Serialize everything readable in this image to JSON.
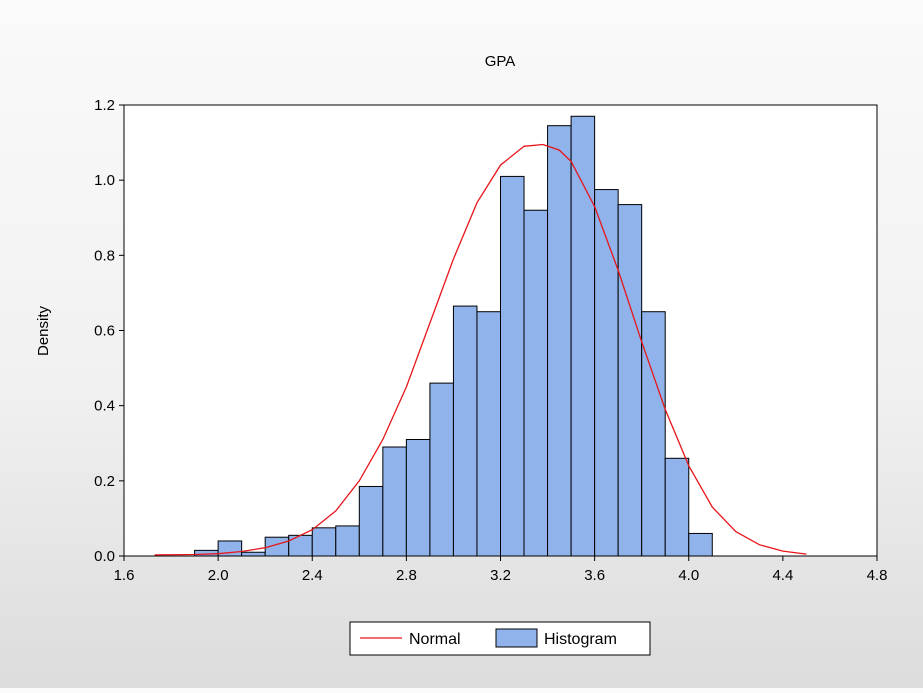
{
  "chart_data": {
    "type": "bar",
    "title": "GPA",
    "xlabel": "",
    "ylabel": "Density",
    "xlim": [
      1.6,
      4.8
    ],
    "ylim": [
      0.0,
      1.2
    ],
    "xticks": [
      "1.6",
      "2.0",
      "2.4",
      "2.8",
      "3.2",
      "3.6",
      "4.0",
      "4.4",
      "4.8"
    ],
    "yticks": [
      "0.0",
      "0.2",
      "0.4",
      "0.6",
      "0.8",
      "1.0",
      "1.2"
    ],
    "grid": false,
    "legend_position": "bottom-center",
    "series": [
      {
        "name": "Histogram",
        "kind": "bars",
        "color": "#8fb3ea",
        "bin_width": 0.1,
        "bins": [
          {
            "x0": 1.9,
            "value": 0.015
          },
          {
            "x0": 2.0,
            "value": 0.04
          },
          {
            "x0": 2.1,
            "value": 0.01
          },
          {
            "x0": 2.2,
            "value": 0.05
          },
          {
            "x0": 2.3,
            "value": 0.055
          },
          {
            "x0": 2.4,
            "value": 0.075
          },
          {
            "x0": 2.5,
            "value": 0.08
          },
          {
            "x0": 2.6,
            "value": 0.185
          },
          {
            "x0": 2.7,
            "value": 0.29
          },
          {
            "x0": 2.8,
            "value": 0.31
          },
          {
            "x0": 2.9,
            "value": 0.46
          },
          {
            "x0": 3.0,
            "value": 0.665
          },
          {
            "x0": 3.1,
            "value": 0.65
          },
          {
            "x0": 3.2,
            "value": 1.01
          },
          {
            "x0": 3.3,
            "value": 0.92
          },
          {
            "x0": 3.4,
            "value": 1.145
          },
          {
            "x0": 3.5,
            "value": 1.17
          },
          {
            "x0": 3.6,
            "value": 0.975
          },
          {
            "x0": 3.7,
            "value": 0.935
          },
          {
            "x0": 3.8,
            "value": 0.65
          },
          {
            "x0": 3.9,
            "value": 0.26
          },
          {
            "x0": 4.0,
            "value": 0.06
          }
        ]
      },
      {
        "name": "Normal",
        "kind": "line",
        "color": "#e8161b",
        "x": [
          1.73,
          1.9,
          2.0,
          2.1,
          2.2,
          2.3,
          2.4,
          2.5,
          2.6,
          2.7,
          2.8,
          2.9,
          3.0,
          3.1,
          3.2,
          3.3,
          3.38,
          3.45,
          3.5,
          3.6,
          3.7,
          3.8,
          3.9,
          4.0,
          4.1,
          4.2,
          4.3,
          4.4,
          4.5
        ],
        "y": [
          0.003,
          0.004,
          0.006,
          0.012,
          0.022,
          0.04,
          0.07,
          0.12,
          0.2,
          0.31,
          0.45,
          0.62,
          0.79,
          0.94,
          1.04,
          1.09,
          1.095,
          1.08,
          1.05,
          0.93,
          0.76,
          0.57,
          0.39,
          0.24,
          0.13,
          0.065,
          0.03,
          0.013,
          0.005
        ]
      }
    ]
  }
}
